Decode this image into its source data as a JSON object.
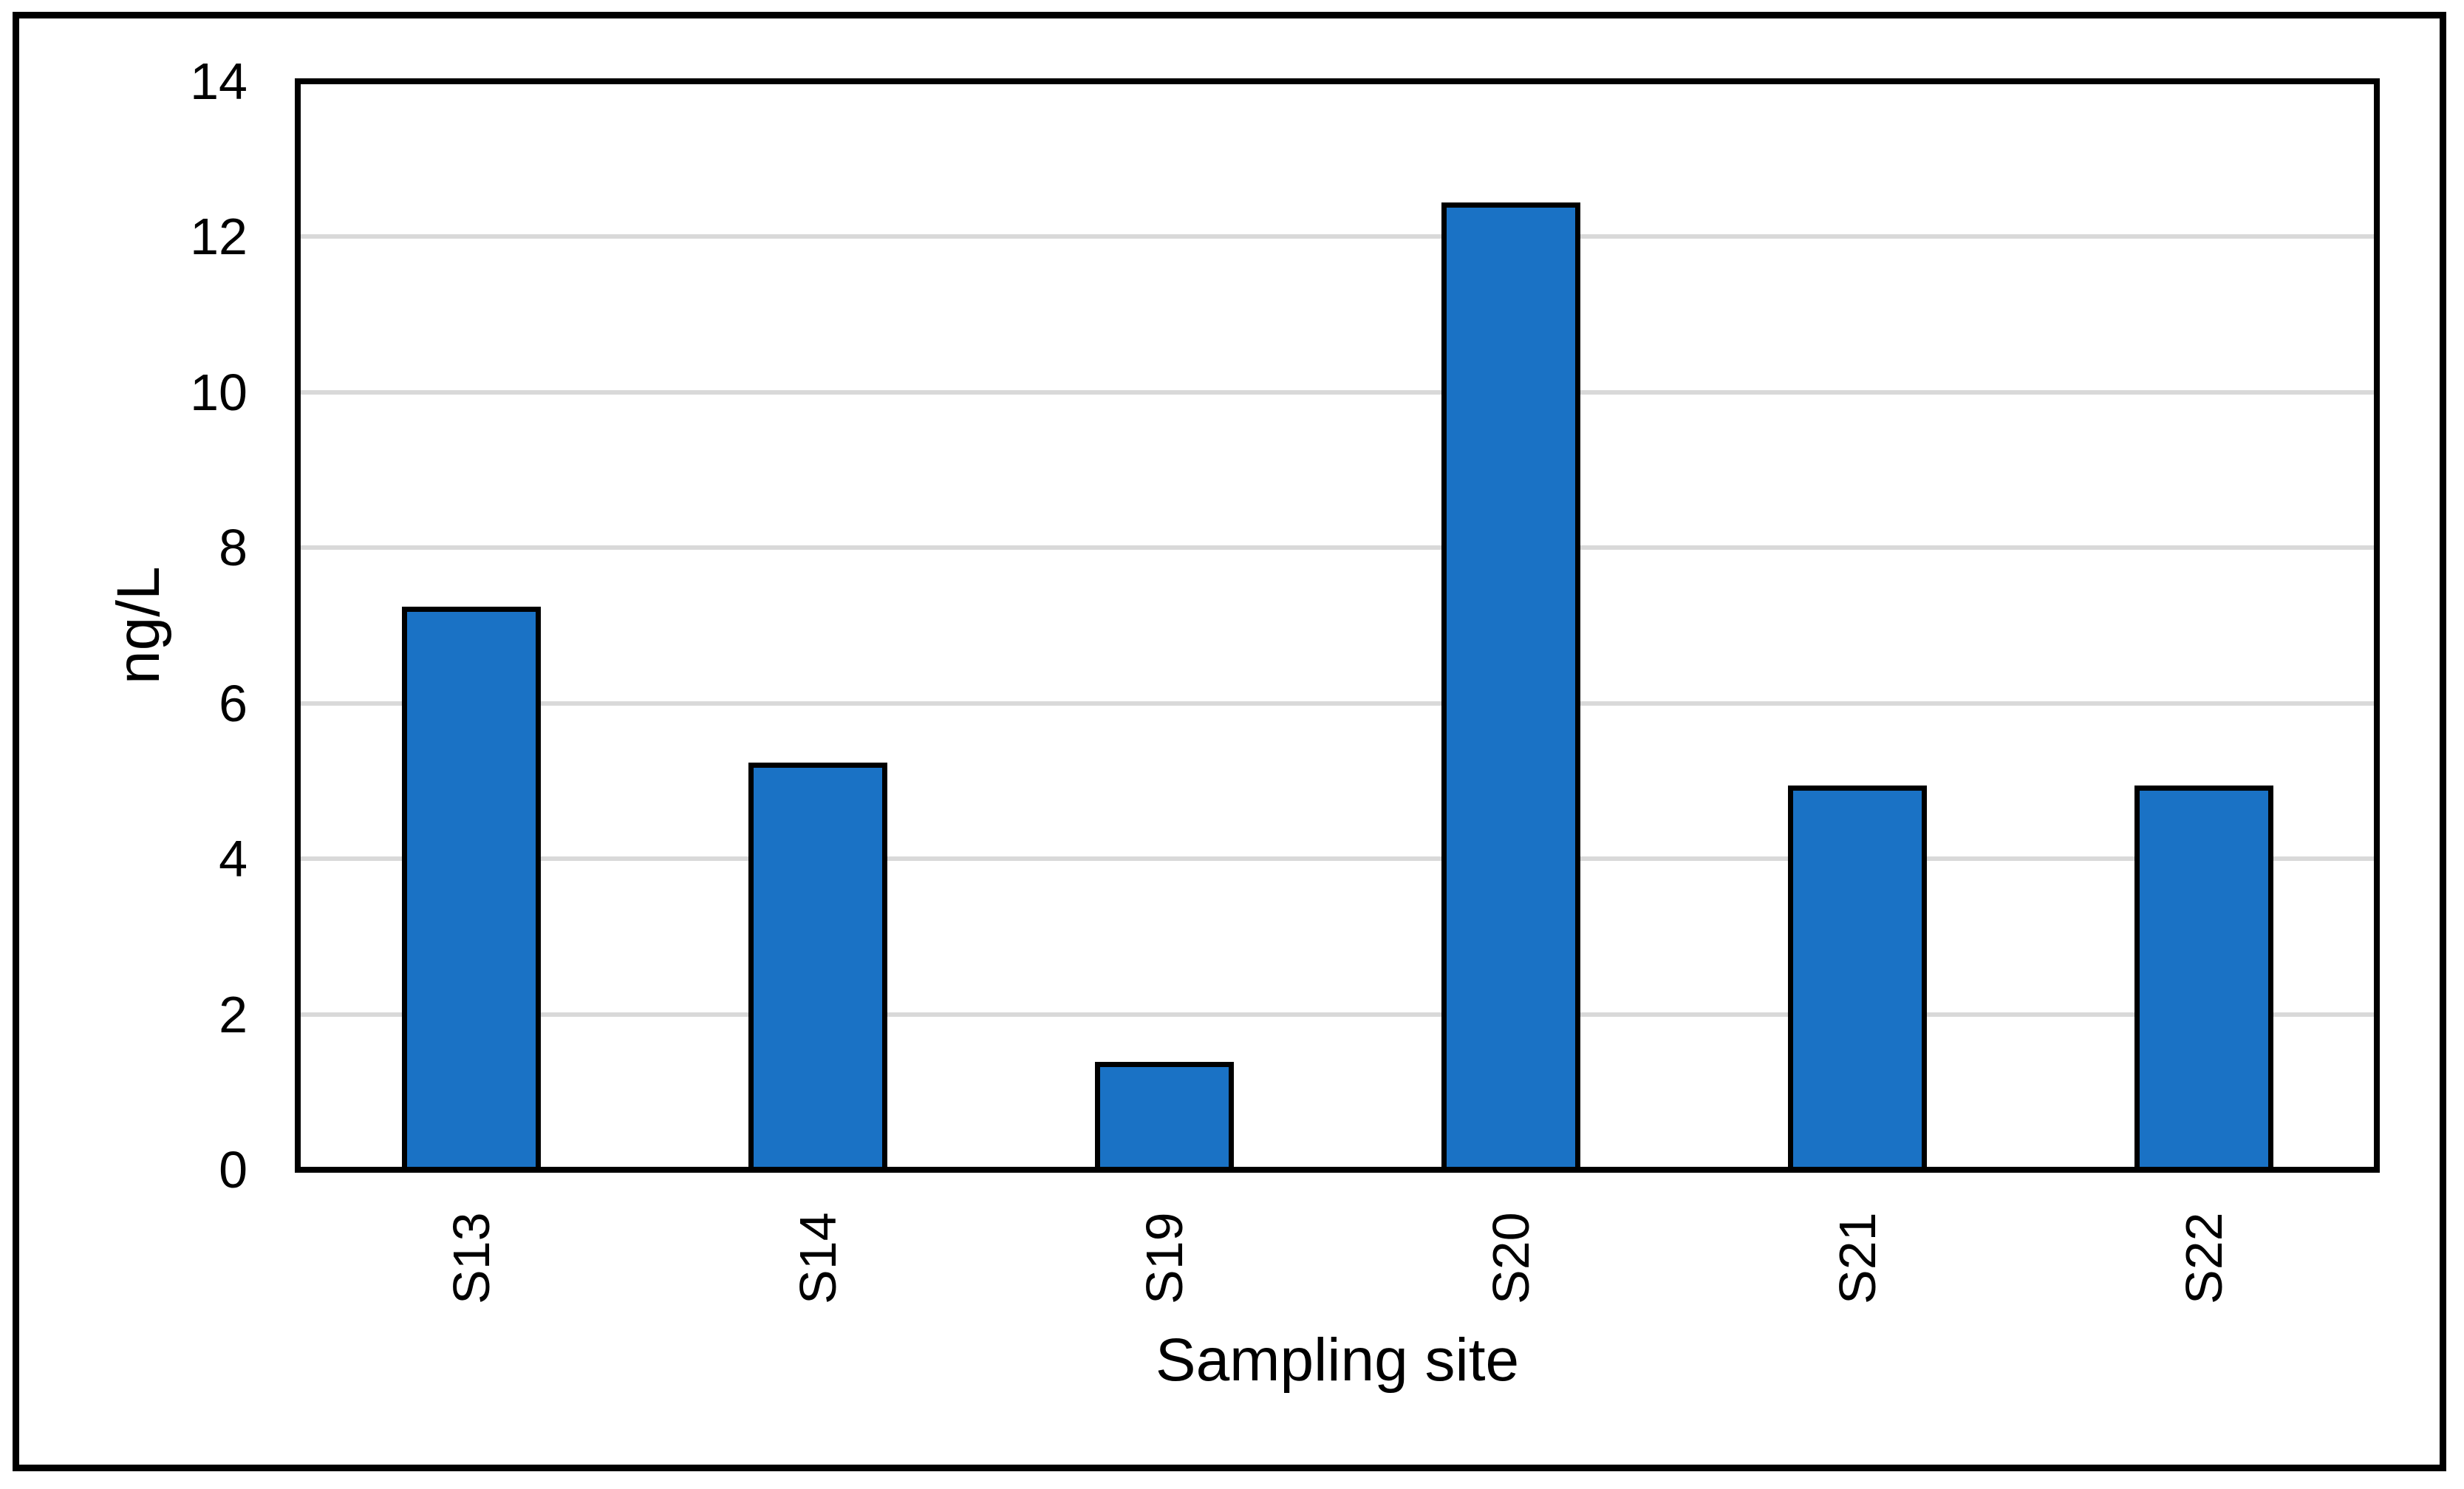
{
  "figure": {
    "background_color": "#FFFFFF",
    "border_color": "#000000"
  },
  "chart_data": {
    "type": "bar",
    "categories": [
      "S13",
      "S14",
      "S19",
      "S20",
      "S21",
      "S22"
    ],
    "values": [
      7.2,
      5.2,
      1.35,
      12.4,
      4.9,
      4.9
    ],
    "title": "",
    "xlabel": "Sampling site",
    "ylabel": "ng/L",
    "ylim": [
      0,
      14
    ],
    "yticks": [
      0,
      2,
      4,
      6,
      8,
      10,
      12,
      14
    ],
    "gridline_values": [
      2,
      4,
      6,
      8,
      10,
      12
    ],
    "grid": true,
    "legend": "none",
    "category_label_rotation_deg": -90,
    "bar_fill_color": "#1A72C5",
    "bar_outline_color": "#000000",
    "gridline_color": "#D9D9D9",
    "axis_color": "#000000",
    "text_color": "#000000"
  }
}
